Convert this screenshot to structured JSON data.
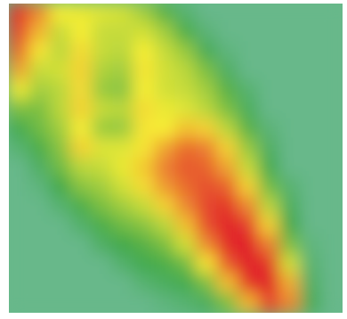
{
  "chart_data": {
    "type": "heatmap",
    "title": "",
    "xlabel": "",
    "ylabel": "",
    "legend": false,
    "grid": false,
    "colors": {
      "background": "#67b88a",
      "low": "#3fa84a",
      "mid": "#f7ee35",
      "high": "#e01d2b"
    },
    "rows": 16,
    "cols": 16,
    "values": [
      [
        0.9,
        0.72,
        0.5,
        0.48,
        0.46,
        0.44,
        0.36,
        0.24,
        0.08,
        0.02,
        0.0,
        0.0,
        0.0,
        0.0,
        0.0,
        0.0
      ],
      [
        0.86,
        0.62,
        0.42,
        0.5,
        0.42,
        0.42,
        0.44,
        0.36,
        0.22,
        0.06,
        0.0,
        0.0,
        0.0,
        0.0,
        0.0,
        0.0
      ],
      [
        0.78,
        0.52,
        0.4,
        0.54,
        0.42,
        0.4,
        0.5,
        0.42,
        0.34,
        0.16,
        0.04,
        0.0,
        0.0,
        0.0,
        0.0,
        0.0
      ],
      [
        0.66,
        0.42,
        0.44,
        0.56,
        0.38,
        0.36,
        0.52,
        0.44,
        0.4,
        0.3,
        0.12,
        0.02,
        0.0,
        0.0,
        0.0,
        0.0
      ],
      [
        0.48,
        0.36,
        0.4,
        0.54,
        0.34,
        0.32,
        0.5,
        0.44,
        0.42,
        0.36,
        0.24,
        0.08,
        0.0,
        0.0,
        0.0,
        0.0
      ],
      [
        0.3,
        0.3,
        0.4,
        0.56,
        0.42,
        0.4,
        0.54,
        0.48,
        0.46,
        0.4,
        0.3,
        0.14,
        0.02,
        0.0,
        0.0,
        0.0
      ],
      [
        0.18,
        0.28,
        0.36,
        0.5,
        0.34,
        0.34,
        0.52,
        0.5,
        0.6,
        0.56,
        0.4,
        0.24,
        0.06,
        0.0,
        0.0,
        0.0
      ],
      [
        0.08,
        0.22,
        0.32,
        0.56,
        0.46,
        0.46,
        0.52,
        0.66,
        0.78,
        0.74,
        0.56,
        0.34,
        0.12,
        0.0,
        0.0,
        0.0
      ],
      [
        0.02,
        0.12,
        0.28,
        0.4,
        0.42,
        0.48,
        0.58,
        0.74,
        0.82,
        0.8,
        0.66,
        0.42,
        0.18,
        0.02,
        0.0,
        0.0
      ],
      [
        0.0,
        0.04,
        0.2,
        0.32,
        0.36,
        0.44,
        0.54,
        0.68,
        0.78,
        0.84,
        0.8,
        0.56,
        0.28,
        0.08,
        0.0,
        0.0
      ],
      [
        0.0,
        0.0,
        0.08,
        0.22,
        0.3,
        0.36,
        0.42,
        0.56,
        0.72,
        0.86,
        0.9,
        0.72,
        0.4,
        0.14,
        0.0,
        0.0
      ],
      [
        0.0,
        0.0,
        0.02,
        0.1,
        0.22,
        0.28,
        0.32,
        0.4,
        0.6,
        0.84,
        0.94,
        0.88,
        0.56,
        0.2,
        0.02,
        0.0
      ],
      [
        0.0,
        0.0,
        0.0,
        0.02,
        0.12,
        0.2,
        0.24,
        0.3,
        0.44,
        0.72,
        0.92,
        0.96,
        0.74,
        0.3,
        0.04,
        0.0
      ],
      [
        0.0,
        0.0,
        0.0,
        0.0,
        0.02,
        0.1,
        0.18,
        0.22,
        0.28,
        0.52,
        0.82,
        0.96,
        0.9,
        0.44,
        0.08,
        0.0
      ],
      [
        0.0,
        0.0,
        0.0,
        0.0,
        0.0,
        0.02,
        0.08,
        0.14,
        0.18,
        0.3,
        0.6,
        0.9,
        0.96,
        0.64,
        0.12,
        0.0
      ],
      [
        0.0,
        0.0,
        0.0,
        0.0,
        0.0,
        0.0,
        0.0,
        0.04,
        0.08,
        0.14,
        0.3,
        0.62,
        0.86,
        0.72,
        0.16,
        0.0
      ]
    ]
  }
}
